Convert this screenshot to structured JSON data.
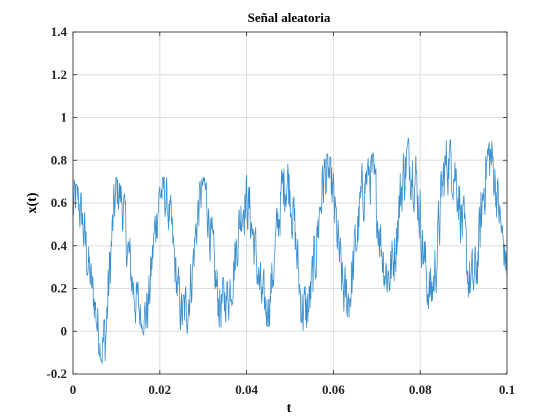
{
  "chart_data": {
    "type": "line",
    "title": "Señal aleatoria",
    "xlabel": "t",
    "ylabel": "x(t)",
    "xlim": [
      0,
      0.1
    ],
    "ylim": [
      -0.2,
      1.4
    ],
    "xticks": [
      0,
      0.02,
      0.04,
      0.06,
      0.08,
      0.1
    ],
    "xtick_labels": [
      "0",
      "0.02",
      "0.04",
      "0.06",
      "0.08",
      "0.1"
    ],
    "yticks": [
      -0.2,
      0,
      0.2,
      0.4,
      0.6,
      0.8,
      1,
      1.2,
      1.4
    ],
    "ytick_labels": [
      "-0.2",
      "0",
      "0.2",
      "0.4",
      "0.6",
      "0.8",
      "1",
      "1.2",
      "1.4"
    ],
    "grid": true,
    "series": [
      {
        "color": "#3a8fcd",
        "x": [
          0,
          0.0025,
          0.005,
          0.0075,
          0.01,
          0.0125,
          0.015,
          0.0175,
          0.02,
          0.0225,
          0.025,
          0.0275,
          0.03,
          0.0325,
          0.035,
          0.0375,
          0.04,
          0.0425,
          0.045,
          0.0475,
          0.05,
          0.0525,
          0.055,
          0.0575,
          0.06,
          0.0625,
          0.065,
          0.0675,
          0.07,
          0.0725,
          0.075,
          0.0775,
          0.08,
          0.0825,
          0.085,
          0.0875,
          0.09,
          0.0925,
          0.095,
          0.0975,
          0.1
        ],
        "y": [
          0.45,
          0.25,
          0.3,
          0.2,
          0.45,
          0.25,
          0.35,
          0.25,
          0.4,
          0.45,
          0.35,
          0.3,
          0.45,
          0.3,
          0.4,
          0.3,
          0.35,
          0.4,
          0.35,
          0.4,
          0.45,
          0.35,
          0.4,
          0.45,
          0.45,
          0.4,
          0.5,
          0.45,
          0.5,
          0.55,
          0.6,
          0.5,
          0.55,
          0.45,
          0.6,
          0.5,
          0.55,
          0.5,
          0.6,
          0.45,
          0.4
        ],
        "y_min_envelope": [
          0.1,
          -0.12,
          -0.05,
          -0.2,
          0.05,
          -0.12,
          0.05,
          -0.08,
          0.05,
          0.1,
          0.0,
          -0.05,
          0.1,
          -0.05,
          0.05,
          -0.03,
          0.0,
          0.05,
          0.02,
          0.05,
          0.05,
          0.0,
          0.02,
          0.05,
          0.05,
          0.02,
          0.1,
          0.05,
          0.1,
          0.12,
          0.15,
          0.1,
          0.12,
          0.1,
          0.15,
          0.1,
          0.15,
          0.12,
          0.15,
          0.15,
          0.15
        ],
        "y_max_envelope": [
          0.72,
          0.62,
          0.55,
          0.75,
          0.72,
          0.62,
          0.72,
          0.65,
          0.72,
          0.72,
          0.72,
          0.65,
          0.72,
          0.7,
          0.72,
          0.65,
          0.75,
          0.78,
          0.7,
          0.78,
          0.82,
          0.78,
          0.78,
          0.85,
          0.8,
          0.75,
          0.86,
          0.8,
          0.85,
          0.88,
          0.95,
          0.9,
          0.92,
          0.85,
          0.95,
          0.88,
          0.95,
          0.9,
          1.0,
          0.85,
          0.6
        ]
      }
    ]
  }
}
